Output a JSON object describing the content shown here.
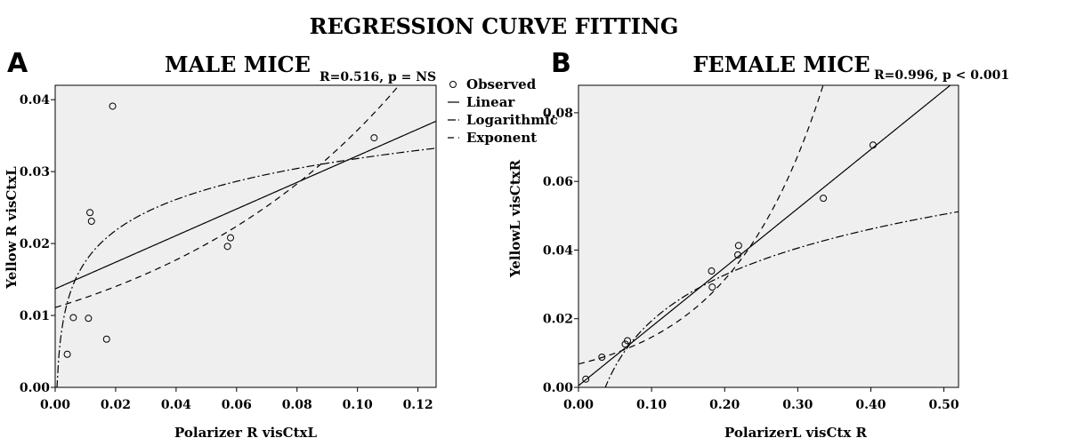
{
  "figure_title": "REGRESSION CURVE FITTING",
  "legend": {
    "observed": "Observed",
    "linear": "Linear",
    "logarithmic": "Logarithmic",
    "exponent": "Exponent"
  },
  "panels": [
    {
      "letter": "A",
      "title": "MALE MICE",
      "stats": "R=0.516, p = NS",
      "xlabel": "Polarizer R visCtxL",
      "ylabel": "Yellow R visCtxL",
      "xticks": [
        "0.00",
        "0.02",
        "0.04",
        "0.06",
        "0.08",
        "0.10",
        "0.12"
      ],
      "yticks": [
        "0.00",
        "0.01",
        "0.02",
        "0.03",
        "0.04"
      ]
    },
    {
      "letter": "B",
      "title": "FEMALE MICE",
      "stats": "R=0.996, p < 0.001",
      "xlabel": "PolarizerL visCtx R",
      "ylabel": "YellowL visCtxR",
      "xticks": [
        "0.00",
        "0.10",
        "0.20",
        "0.30",
        "0.40",
        "0.50"
      ],
      "yticks": [
        "0.00",
        "0.02",
        "0.04",
        "0.06",
        "0.08"
      ]
    }
  ],
  "chart_data": [
    {
      "type": "scatter",
      "title": "MALE MICE",
      "xlabel": "Polarizer R visCtxL",
      "ylabel": "Yellow R visCtxL",
      "xlim": [
        0,
        0.126
      ],
      "ylim": [
        0,
        0.042
      ],
      "grid": false,
      "legend_position": "right",
      "observed": {
        "x": [
          0.004,
          0.006,
          0.011,
          0.0115,
          0.012,
          0.017,
          0.019,
          0.057,
          0.058,
          0.1055
        ],
        "y": [
          0.0046,
          0.0097,
          0.0096,
          0.0243,
          0.0231,
          0.0067,
          0.0391,
          0.0196,
          0.0208,
          0.0347
        ]
      },
      "fits": {
        "linear": {
          "intercept": 0.0137,
          "slope": 0.185
        },
        "logarithmic": {
          "a": 0.04614,
          "b": 0.00622
        },
        "exponent": {
          "a": 0.0111,
          "b": 11.7
        }
      }
    },
    {
      "type": "scatter",
      "title": "FEMALE MICE",
      "xlabel": "PolarizerL visCtx R",
      "ylabel": "YellowL visCtxR",
      "xlim": [
        0,
        0.52
      ],
      "ylim": [
        0,
        0.088
      ],
      "grid": false,
      "legend_position": "none",
      "observed": {
        "x": [
          0.01,
          0.032,
          0.064,
          0.067,
          0.182,
          0.183,
          0.218,
          0.219,
          0.335,
          0.403
        ],
        "y": [
          0.0024,
          0.0088,
          0.0126,
          0.0136,
          0.0339,
          0.0292,
          0.0386,
          0.0413,
          0.0551,
          0.0706
        ]
      },
      "fits": {
        "linear": {
          "intercept": 0.0005,
          "slope": 0.172
        },
        "logarithmic": {
          "a": 0.0638,
          "b": 0.0193
        },
        "exponent": {
          "a": 0.0068,
          "b": 7.65
        }
      }
    }
  ]
}
